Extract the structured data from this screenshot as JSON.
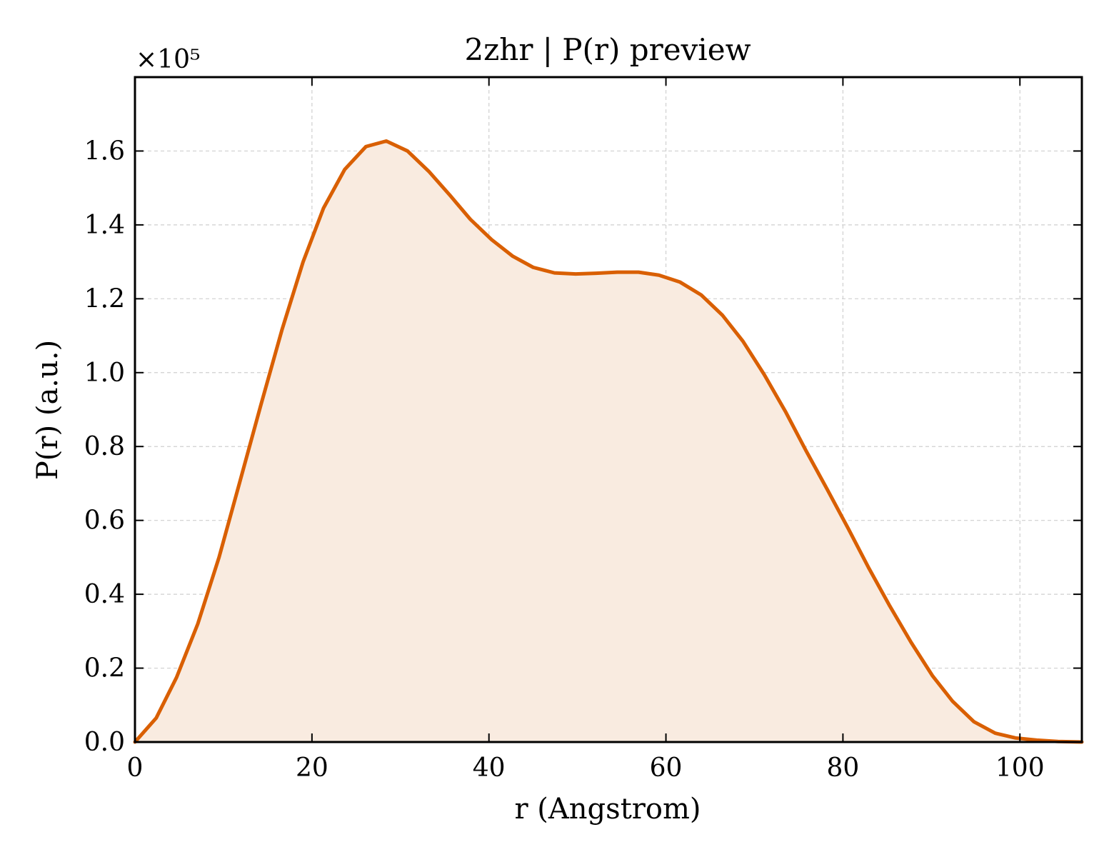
{
  "chart_data": {
    "type": "area",
    "title": "2zhr | P(r) preview",
    "xlabel": "r (Angstrom)",
    "ylabel": "P(r) (a.u.)",
    "y_multiplier_label": "×10⁵",
    "y_scale": 100000,
    "xlim": [
      0,
      107
    ],
    "ylim": [
      0,
      1.8
    ],
    "xticks": [
      0,
      20,
      40,
      60,
      80,
      100
    ],
    "yticks": [
      0.0,
      0.2,
      0.4,
      0.6,
      0.8,
      1.0,
      1.2,
      1.4,
      1.6
    ],
    "xtick_labels": [
      "0",
      "20",
      "40",
      "60",
      "80",
      "100"
    ],
    "ytick_labels": [
      "0.0",
      "0.2",
      "0.4",
      "0.6",
      "0.8",
      "1.0",
      "1.2",
      "1.4",
      "1.6"
    ],
    "grid": true,
    "line_color": "#d95f02",
    "fill_color": "#f9ebe0",
    "series": [
      {
        "x": [
          0,
          2.4,
          4.7,
          7.1,
          9.5,
          11.8,
          14.2,
          16.6,
          19.0,
          21.3,
          23.7,
          26.1,
          28.4,
          30.8,
          33.2,
          35.6,
          37.9,
          40.3,
          42.7,
          45.0,
          47.4,
          49.8,
          52.1,
          54.5,
          56.9,
          59.2,
          61.6,
          64.0,
          66.4,
          68.7,
          71.1,
          73.5,
          75.8,
          78.2,
          80.6,
          82.9,
          85.3,
          87.7,
          90.1,
          92.4,
          94.8,
          97.2,
          99.5,
          101.9,
          104.3,
          107.0
        ],
        "y": [
          0.0,
          0.065,
          0.175,
          0.32,
          0.5,
          0.7,
          0.91,
          1.115,
          1.3,
          1.445,
          1.55,
          1.612,
          1.627,
          1.6,
          1.545,
          1.48,
          1.415,
          1.36,
          1.315,
          1.285,
          1.27,
          1.267,
          1.269,
          1.272,
          1.272,
          1.264,
          1.245,
          1.21,
          1.155,
          1.085,
          0.995,
          0.895,
          0.79,
          0.685,
          0.578,
          0.472,
          0.368,
          0.27,
          0.18,
          0.11,
          0.055,
          0.024,
          0.011,
          0.005,
          0.0015,
          0.0
        ]
      }
    ]
  }
}
